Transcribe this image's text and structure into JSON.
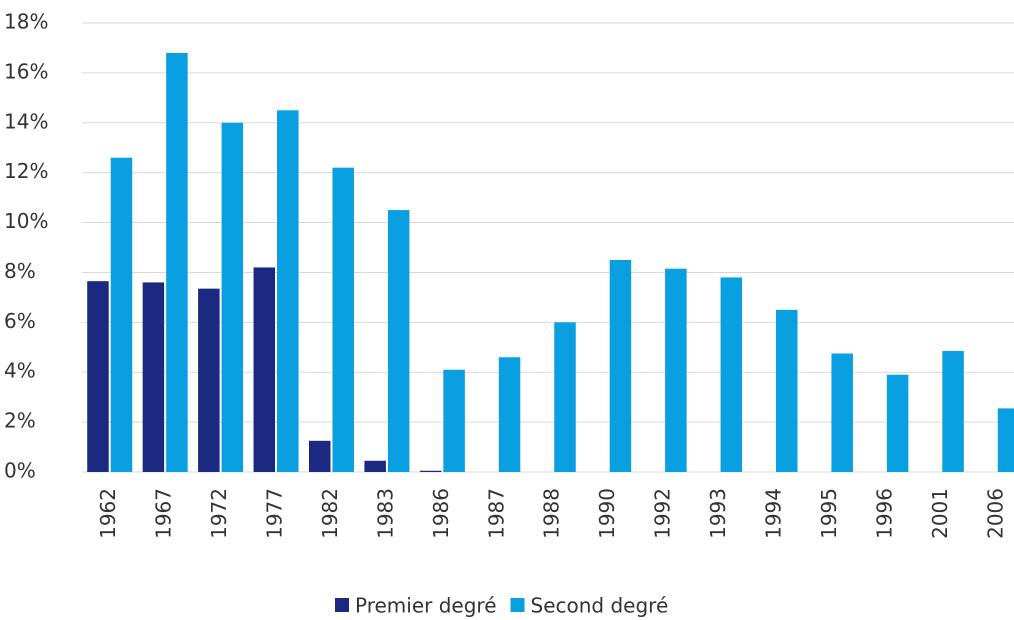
{
  "chart_data": {
    "type": "bar",
    "categories": [
      "1962",
      "1967",
      "1972",
      "1977",
      "1982",
      "1983",
      "1986",
      "1987",
      "1988",
      "1990",
      "1992",
      "1993",
      "1994",
      "1995",
      "1996",
      "2001",
      "2006"
    ],
    "series": [
      {
        "name": "Premier degré",
        "color": "#1b2a80",
        "values": [
          7.65,
          7.6,
          7.35,
          8.2,
          1.25,
          0.45,
          0.05,
          null,
          null,
          null,
          null,
          null,
          null,
          null,
          null,
          null,
          null
        ]
      },
      {
        "name": "Second degré",
        "color": "#0a9fe0",
        "values": [
          12.6,
          16.8,
          14.0,
          14.5,
          12.2,
          10.5,
          4.1,
          4.6,
          6.0,
          8.5,
          8.15,
          7.8,
          6.5,
          4.75,
          3.9,
          4.85,
          2.55
        ]
      }
    ],
    "ylim": [
      0,
      18
    ],
    "yticks": [
      {
        "value": 0,
        "label": "0%"
      },
      {
        "value": 2,
        "label": "2%"
      },
      {
        "value": 4,
        "label": "4%"
      },
      {
        "value": 6,
        "label": "6%"
      },
      {
        "value": 8,
        "label": "8%"
      },
      {
        "value": 10,
        "label": "10%"
      },
      {
        "value": 12,
        "label": "12%"
      },
      {
        "value": 14,
        "label": "14%"
      },
      {
        "value": 16,
        "label": "16%"
      },
      {
        "value": 18,
        "label": "18%"
      }
    ],
    "grid": true,
    "legend": "bottom"
  }
}
